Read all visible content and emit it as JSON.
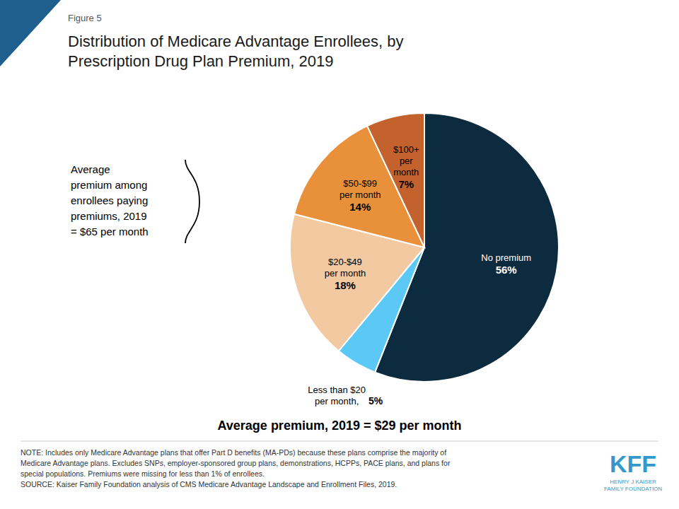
{
  "chart_data": {
    "type": "pie",
    "title": "Distribution of Medicare Advantage Enrollees, by\nPrescription Drug Plan Premium, 2019",
    "categories": [
      "No premium",
      "Less than $20\nper month,",
      "$20-$49\nper month",
      "$50-$99\nper month",
      "$100+\nper\nmonth"
    ],
    "values": [
      56,
      5,
      18,
      14,
      7
    ],
    "value_labels": [
      "56%",
      "5%",
      "18%",
      "14%",
      "7%"
    ],
    "colors": [
      "#0d2b3e",
      "#5bc8f5",
      "#f2c9a0",
      "#e8913a",
      "#c4622d"
    ],
    "data_labels": true,
    "annotations": [
      "Figure 5",
      "Average\npremium among\nenrollees paying\npremiums, 2019\n= $65 per month",
      "Average premium, 2019 = $29 per month",
      "NOTE: Includes only Medicare Advantage plans that offer Part D benefits (MA-PDs) because these plans comprise the majority of\nMedicare Advantage plans. Excludes SNPs, employer-sponsored group plans, demonstrations, HCPPs, PACE plans, and plans for\nspecial populations. Premiums were missing for less than 1% of enrollees.\nSOURCE: Kaiser Family Foundation analysis of CMS Medicare Advantage Landscape and Enrollment Files, 2019.",
      "KFF",
      "HENRY J KAISER\nFAMILY FOUNDATION"
    ]
  }
}
